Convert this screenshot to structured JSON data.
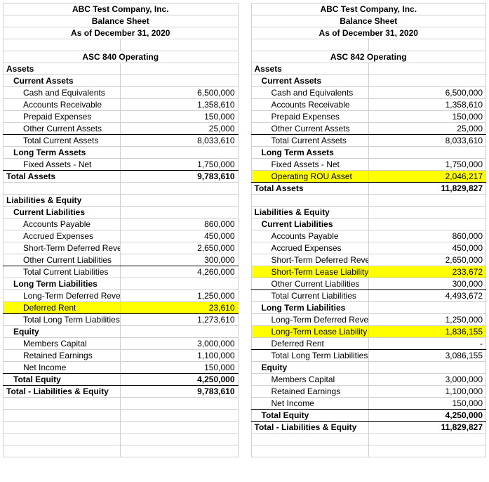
{
  "colors": {
    "highlight": "#ffff00",
    "gridline": "#d0d0d0",
    "background": "#ffffff",
    "text": "#000000"
  },
  "left": {
    "header": {
      "company": "ABC Test Company, Inc.",
      "title": "Balance Sheet",
      "date": "As of December 31, 2020",
      "section": "ASC 840 Operating"
    },
    "rows": [
      {
        "label": "Assets",
        "val": "",
        "cls": "bold",
        "hl": false
      },
      {
        "label": "Current Assets",
        "val": "",
        "cls": "bold ind1",
        "hl": false
      },
      {
        "label": "Cash and Equivalents",
        "val": "6,500,000",
        "cls": "ind2",
        "hl": false
      },
      {
        "label": "Accounts Receivable",
        "val": "1,358,610",
        "cls": "ind2",
        "hl": false
      },
      {
        "label": "Prepaid Expenses",
        "val": "150,000",
        "cls": "ind2",
        "hl": false
      },
      {
        "label": "Other Current Assets",
        "val": "25,000",
        "cls": "ind2",
        "hl": false,
        "under": true
      },
      {
        "label": "Total Current Assets",
        "val": "8,033,610",
        "cls": "ind2",
        "hl": false
      },
      {
        "label": "Long Term Assets",
        "val": "",
        "cls": "bold ind1",
        "hl": false
      },
      {
        "label": "Fixed Assets - Net",
        "val": "1,750,000",
        "cls": "ind2",
        "hl": false,
        "under": true
      },
      {
        "label": "Total Assets",
        "val": "9,783,610",
        "cls": "bold",
        "hl": false
      },
      {
        "label": "",
        "val": "",
        "cls": "",
        "hl": false
      },
      {
        "label": "Liabilities & Equity",
        "val": "",
        "cls": "bold",
        "hl": false
      },
      {
        "label": "Current Liabilities",
        "val": "",
        "cls": "bold ind1",
        "hl": false
      },
      {
        "label": "Accounts Payable",
        "val": "860,000",
        "cls": "ind2",
        "hl": false
      },
      {
        "label": "Accrued Expenses",
        "val": "450,000",
        "cls": "ind2",
        "hl": false
      },
      {
        "label": "Short-Term Deferred Revenue",
        "val": "2,650,000",
        "cls": "ind2",
        "hl": false
      },
      {
        "label": "Other Current Liabilities",
        "val": "300,000",
        "cls": "ind2",
        "hl": false,
        "under": true
      },
      {
        "label": "Total Current Liabilities",
        "val": "4,260,000",
        "cls": "ind2",
        "hl": false
      },
      {
        "label": "Long Term Liabilities",
        "val": "",
        "cls": "bold ind1",
        "hl": false
      },
      {
        "label": "Long-Term Deferred Revenue",
        "val": "1,250,000",
        "cls": "ind2",
        "hl": false
      },
      {
        "label": "Deferred Rent",
        "val": "23,610",
        "cls": "ind2",
        "hl": true,
        "under": true
      },
      {
        "label": "Total Long Term Liabilities",
        "val": "1,273,610",
        "cls": "ind2",
        "hl": false
      },
      {
        "label": "Equity",
        "val": "",
        "cls": "bold ind1",
        "hl": false
      },
      {
        "label": "Members Capital",
        "val": "3,000,000",
        "cls": "ind2",
        "hl": false
      },
      {
        "label": "Retained Earnings",
        "val": "1,100,000",
        "cls": "ind2",
        "hl": false
      },
      {
        "label": "Net Income",
        "val": "150,000",
        "cls": "ind2",
        "hl": false,
        "under": true
      },
      {
        "label": "Total Equity",
        "val": "4,250,000",
        "cls": "bold ind1",
        "hl": false,
        "under": true
      },
      {
        "label": "Total - Liabilities & Equity",
        "val": "9,783,610",
        "cls": "bold",
        "hl": false
      },
      {
        "label": "",
        "val": "",
        "cls": "",
        "hl": false
      },
      {
        "label": "",
        "val": "",
        "cls": "",
        "hl": false
      },
      {
        "label": "",
        "val": "",
        "cls": "",
        "hl": false
      },
      {
        "label": "",
        "val": "",
        "cls": "",
        "hl": false
      },
      {
        "label": "",
        "val": "",
        "cls": "",
        "hl": false
      }
    ]
  },
  "right": {
    "header": {
      "company": "ABC Test Company, Inc.",
      "title": "Balance Sheet",
      "date": "As of December 31, 2020",
      "section": "ASC 842 Operating"
    },
    "rows": [
      {
        "label": "Assets",
        "val": "",
        "cls": "bold",
        "hl": false
      },
      {
        "label": "Current Assets",
        "val": "",
        "cls": "bold ind1",
        "hl": false
      },
      {
        "label": "Cash and Equivalents",
        "val": "6,500,000",
        "cls": "ind2",
        "hl": false
      },
      {
        "label": "Accounts Receivable",
        "val": "1,358,610",
        "cls": "ind2",
        "hl": false
      },
      {
        "label": "Prepaid Expenses",
        "val": "150,000",
        "cls": "ind2",
        "hl": false
      },
      {
        "label": "Other Current Assets",
        "val": "25,000",
        "cls": "ind2",
        "hl": false,
        "under": true
      },
      {
        "label": "Total Current Assets",
        "val": "8,033,610",
        "cls": "ind2",
        "hl": false
      },
      {
        "label": "Long Term Assets",
        "val": "",
        "cls": "bold ind1",
        "hl": false
      },
      {
        "label": "Fixed Assets - Net",
        "val": "1,750,000",
        "cls": "ind2",
        "hl": false
      },
      {
        "label": "Operating ROU Asset",
        "val": "2,046,217",
        "cls": "ind2",
        "hl": true,
        "under": true
      },
      {
        "label": "Total Assets",
        "val": "11,829,827",
        "cls": "bold",
        "hl": false
      },
      {
        "label": "",
        "val": "",
        "cls": "",
        "hl": false
      },
      {
        "label": "Liabilities & Equity",
        "val": "",
        "cls": "bold",
        "hl": false
      },
      {
        "label": "Current Liabilities",
        "val": "",
        "cls": "bold ind1",
        "hl": false
      },
      {
        "label": "Accounts Payable",
        "val": "860,000",
        "cls": "ind2",
        "hl": false
      },
      {
        "label": "Accrued Expenses",
        "val": "450,000",
        "cls": "ind2",
        "hl": false
      },
      {
        "label": "Short-Term Deferred Revenue",
        "val": "2,650,000",
        "cls": "ind2",
        "hl": false
      },
      {
        "label": "Short-Term Lease Liability",
        "val": "233,672",
        "cls": "ind2",
        "hl": true
      },
      {
        "label": "Other Current Liabilities",
        "val": "300,000",
        "cls": "ind2",
        "hl": false,
        "under": true
      },
      {
        "label": "Total Current Liabilities",
        "val": "4,493,672",
        "cls": "ind2",
        "hl": false
      },
      {
        "label": "Long Term Liabilities",
        "val": "",
        "cls": "bold ind1",
        "hl": false
      },
      {
        "label": "Long-Term Deferred Revenue",
        "val": "1,250,000",
        "cls": "ind2",
        "hl": false
      },
      {
        "label": "Long-Term Lease Liability",
        "val": "1,836,155",
        "cls": "ind2",
        "hl": true
      },
      {
        "label": "Deferred Rent",
        "val": "-",
        "cls": "ind2",
        "hl": false,
        "under": true
      },
      {
        "label": "Total Long Term Liabilities",
        "val": "3,086,155",
        "cls": "ind2",
        "hl": false
      },
      {
        "label": "Equity",
        "val": "",
        "cls": "bold ind1",
        "hl": false
      },
      {
        "label": "Members Capital",
        "val": "3,000,000",
        "cls": "ind2",
        "hl": false
      },
      {
        "label": "Retained Earnings",
        "val": "1,100,000",
        "cls": "ind2",
        "hl": false
      },
      {
        "label": "Net Income",
        "val": "150,000",
        "cls": "ind2",
        "hl": false,
        "under": true
      },
      {
        "label": "Total Equity",
        "val": "4,250,000",
        "cls": "bold ind1",
        "hl": false,
        "under": true
      },
      {
        "label": "Total - Liabilities & Equity",
        "val": "11,829,827",
        "cls": "bold",
        "hl": false
      },
      {
        "label": "",
        "val": "",
        "cls": "",
        "hl": false
      },
      {
        "label": "",
        "val": "",
        "cls": "",
        "hl": false
      }
    ]
  }
}
